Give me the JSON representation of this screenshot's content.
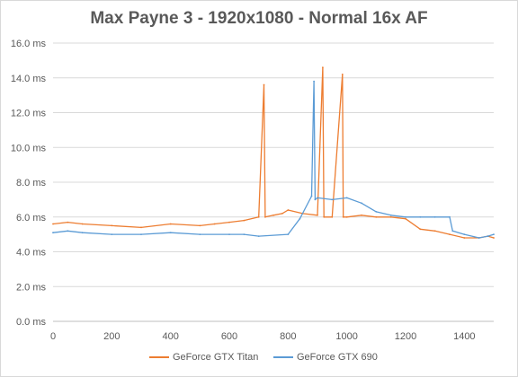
{
  "chart_data": {
    "type": "line",
    "title": "Max Payne 3 - 1920x1080 - Normal 16x AF",
    "xlabel": "",
    "ylabel": "",
    "xlim": [
      0,
      1500
    ],
    "ylim": [
      0,
      16
    ],
    "x_ticks": [
      "0",
      "200",
      "400",
      "600",
      "800",
      "1000",
      "1200",
      "1400"
    ],
    "y_ticks": [
      "0.0 ms",
      "2.0 ms",
      "4.0 ms",
      "6.0 ms",
      "8.0 ms",
      "10.0 ms",
      "12.0 ms",
      "14.0 ms",
      "16.0 ms"
    ],
    "grid": "horizontal",
    "legend_position": "bottom",
    "series": [
      {
        "name": "GeForce GTX Titan",
        "color": "#ED7D31",
        "x": [
          0,
          50,
          100,
          200,
          300,
          400,
          500,
          550,
          600,
          650,
          700,
          718,
          722,
          750,
          780,
          800,
          850,
          900,
          918,
          922,
          950,
          985,
          988,
          1000,
          1050,
          1100,
          1150,
          1200,
          1250,
          1300,
          1350,
          1400,
          1450,
          1480,
          1500
        ],
        "values": [
          5.6,
          5.7,
          5.6,
          5.5,
          5.4,
          5.6,
          5.5,
          5.6,
          5.7,
          5.8,
          6.0,
          13.6,
          6.0,
          6.1,
          6.2,
          6.4,
          6.2,
          6.1,
          14.6,
          6.0,
          6.0,
          14.2,
          6.0,
          6.0,
          6.1,
          6.0,
          6.0,
          5.9,
          5.3,
          5.2,
          5.0,
          4.8,
          4.8,
          4.9,
          4.8
        ]
      },
      {
        "name": "GeForce GTX 690",
        "color": "#5B9BD5",
        "x": [
          0,
          50,
          100,
          200,
          300,
          400,
          500,
          600,
          650,
          700,
          800,
          840,
          880,
          888,
          892,
          900,
          950,
          1000,
          1050,
          1100,
          1150,
          1200,
          1250,
          1300,
          1350,
          1360,
          1400,
          1450,
          1480,
          1500
        ],
        "values": [
          5.1,
          5.2,
          5.1,
          5.0,
          5.0,
          5.1,
          5.0,
          5.0,
          5.0,
          4.9,
          5.0,
          5.9,
          7.2,
          13.8,
          7.0,
          7.1,
          7.0,
          7.1,
          6.8,
          6.3,
          6.1,
          6.0,
          6.0,
          6.0,
          6.0,
          5.2,
          5.0,
          4.8,
          4.9,
          5.0
        ]
      }
    ]
  }
}
